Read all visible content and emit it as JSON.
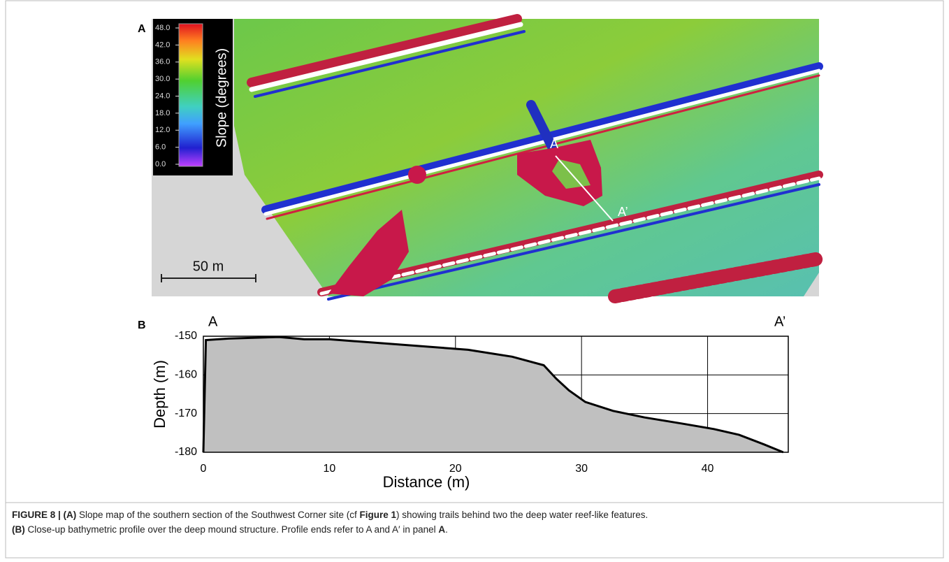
{
  "figure": {
    "panel_a_label": "A",
    "panel_b_label": "B",
    "colorbar": {
      "label": "Slope (degrees)",
      "lim": [
        0,
        48
      ],
      "ticks": [
        {
          "value": 0,
          "label": "0.0"
        },
        {
          "value": 6,
          "label": "6.0"
        },
        {
          "value": 12,
          "label": "12.0"
        },
        {
          "value": 18,
          "label": "18.0"
        },
        {
          "value": 24,
          "label": "24.0"
        },
        {
          "value": 30,
          "label": "30.0"
        },
        {
          "value": 36,
          "label": "36.0"
        },
        {
          "value": 42,
          "label": "42.0"
        },
        {
          "value": 48,
          "label": "48.0"
        }
      ]
    },
    "scale_bar": "50 m",
    "map_profile_start": "A",
    "map_profile_end": "A’",
    "caption": {
      "line1": [
        "FIGURE 8 | (A)",
        " Slope map of the southern section of the Southwest Corner site (cf ",
        "Figure 1",
        ") showing trails behind two the deep water reef-like features."
      ],
      "line2": [
        "(B)",
        " Close-up bathymetric profile over the deep mound structure. Profile ends refer to A and A′ in panel ",
        "A",
        "."
      ]
    }
  },
  "chart_data": {
    "type": "area",
    "x_label": "Distance (m)",
    "y_label": "Depth (m)",
    "start_label": "A",
    "end_label": "A’",
    "x": [
      0,
      0.2,
      2,
      6,
      8,
      10,
      15,
      21,
      24.5,
      27,
      28,
      29,
      30.3,
      32.5,
      35,
      38,
      40.5,
      42.5,
      44.5,
      46
    ],
    "values": [
      -180,
      -151,
      -150.6,
      -150.2,
      -150.8,
      -150.8,
      -152,
      -153.5,
      -155.3,
      -157.5,
      -161,
      -164,
      -167,
      -169.3,
      -171,
      -172.6,
      -174,
      -175.5,
      -178,
      -180
    ],
    "color": "#c0c0c0",
    "xlim": [
      0,
      46.4
    ],
    "ylim": [
      -180,
      -150
    ],
    "xticks": [
      0,
      10,
      20,
      30,
      40
    ],
    "yticks": [
      -150,
      -160,
      -170,
      -180
    ],
    "grid": true
  }
}
